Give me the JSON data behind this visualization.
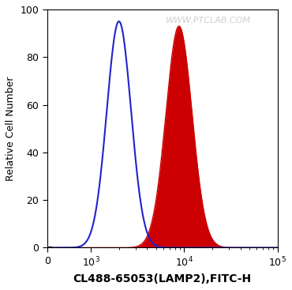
{
  "xlabel": "CL488-65053(LAMP2),FITC-H",
  "ylabel": "Relative Cell Number",
  "watermark": "WWW.PTCLAB.COM",
  "xlim": [
    0,
    100000
  ],
  "ylim": [
    0,
    100
  ],
  "yticks": [
    0,
    20,
    40,
    60,
    80,
    100
  ],
  "blue_peak_x": 2000,
  "blue_peak_y": 95,
  "blue_sigma": 0.13,
  "red_peak_x": 8800,
  "red_peak_y": 93,
  "red_sigma": 0.14,
  "blue_color": "#2222CC",
  "red_color": "#CC0000",
  "bg_color": "#ffffff",
  "watermark_color": "#c8c8c8",
  "xlabel_fontsize": 10,
  "ylabel_fontsize": 9,
  "tick_fontsize": 9,
  "watermark_fontsize": 8,
  "linthresh": 500,
  "linscale": 0.15
}
